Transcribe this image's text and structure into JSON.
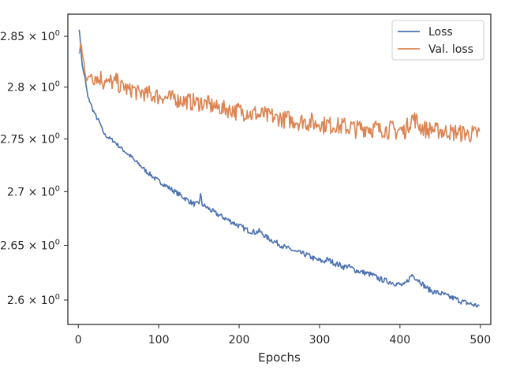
{
  "chart_data": {
    "type": "line",
    "title": "",
    "xlabel": "Epochs",
    "ylabel": "",
    "y_scale": "log",
    "xlim": [
      -13,
      513
    ],
    "ylim": [
      2.578,
      2.872
    ],
    "grid": false,
    "legend_position": "top-right",
    "x_ticks": [
      0,
      100,
      200,
      300,
      400,
      500
    ],
    "x_tick_labels": [
      "0",
      "100",
      "200",
      "300",
      "400",
      "500"
    ],
    "y_ticks": [
      {
        "value": 2.6,
        "base": "2.6",
        "sup": "0"
      },
      {
        "value": 2.65,
        "base": "2.65",
        "sup": "0"
      },
      {
        "value": 2.7,
        "base": "2.7",
        "sup": "0"
      },
      {
        "value": 2.75,
        "base": "2.75",
        "sup": "0"
      },
      {
        "value": 2.8,
        "base": "2.8",
        "sup": "0"
      },
      {
        "value": 2.85,
        "base": "2.85",
        "sup": "0"
      }
    ],
    "series": [
      {
        "name": "Loss",
        "color": "#4c72b0",
        "points": [
          [
            1,
            2.858
          ],
          [
            3,
            2.84
          ],
          [
            5,
            2.82
          ],
          [
            8,
            2.81
          ],
          [
            10,
            2.8
          ],
          [
            12,
            2.79
          ],
          [
            15,
            2.785
          ],
          [
            18,
            2.778
          ],
          [
            20,
            2.775
          ],
          [
            23,
            2.77
          ],
          [
            25,
            2.768
          ],
          [
            28,
            2.763
          ],
          [
            30,
            2.758
          ],
          [
            33,
            2.754
          ],
          [
            36,
            2.752
          ],
          [
            40,
            2.75
          ],
          [
            44,
            2.748
          ],
          [
            48,
            2.745
          ],
          [
            52,
            2.742
          ],
          [
            55,
            2.74
          ],
          [
            58,
            2.738
          ],
          [
            62,
            2.735
          ],
          [
            66,
            2.733
          ],
          [
            70,
            2.729
          ],
          [
            74,
            2.727
          ],
          [
            78,
            2.724
          ],
          [
            82,
            2.721
          ],
          [
            86,
            2.718
          ],
          [
            90,
            2.716
          ],
          [
            94,
            2.713
          ],
          [
            98,
            2.711
          ],
          [
            102,
            2.709
          ],
          [
            106,
            2.707
          ],
          [
            110,
            2.705
          ],
          [
            114,
            2.703
          ],
          [
            118,
            2.701
          ],
          [
            122,
            2.699
          ],
          [
            126,
            2.697
          ],
          [
            130,
            2.695
          ],
          [
            134,
            2.693
          ],
          [
            138,
            2.691
          ],
          [
            142,
            2.689
          ],
          [
            146,
            2.688
          ],
          [
            150,
            2.689
          ],
          [
            152,
            2.697
          ],
          [
            154,
            2.688
          ],
          [
            158,
            2.686
          ],
          [
            162,
            2.684
          ],
          [
            166,
            2.682
          ],
          [
            170,
            2.68
          ],
          [
            175,
            2.678
          ],
          [
            180,
            2.676
          ],
          [
            185,
            2.674
          ],
          [
            190,
            2.672
          ],
          [
            195,
            2.67
          ],
          [
            200,
            2.668
          ],
          [
            205,
            2.666
          ],
          [
            210,
            2.664
          ],
          [
            215,
            2.663
          ],
          [
            220,
            2.662
          ],
          [
            225,
            2.663
          ],
          [
            230,
            2.66
          ],
          [
            235,
            2.657
          ],
          [
            240,
            2.655
          ],
          [
            245,
            2.653
          ],
          [
            250,
            2.651
          ],
          [
            255,
            2.649
          ],
          [
            260,
            2.647
          ],
          [
            265,
            2.646
          ],
          [
            270,
            2.644
          ],
          [
            275,
            2.643
          ],
          [
            280,
            2.642
          ],
          [
            285,
            2.641
          ],
          [
            290,
            2.639
          ],
          [
            295,
            2.637
          ],
          [
            300,
            2.636
          ],
          [
            305,
            2.635
          ],
          [
            310,
            2.637
          ],
          [
            315,
            2.635
          ],
          [
            320,
            2.633
          ],
          [
            325,
            2.632
          ],
          [
            330,
            2.63
          ],
          [
            335,
            2.631
          ],
          [
            340,
            2.629
          ],
          [
            345,
            2.627
          ],
          [
            350,
            2.626
          ],
          [
            355,
            2.625
          ],
          [
            360,
            2.624
          ],
          [
            365,
            2.623
          ],
          [
            370,
            2.621
          ],
          [
            375,
            2.619
          ],
          [
            380,
            2.618
          ],
          [
            385,
            2.617
          ],
          [
            390,
            2.616
          ],
          [
            395,
            2.615
          ],
          [
            400,
            2.614
          ],
          [
            405,
            2.613
          ],
          [
            410,
            2.618
          ],
          [
            415,
            2.623
          ],
          [
            420,
            2.62
          ],
          [
            425,
            2.617
          ],
          [
            430,
            2.613
          ],
          [
            435,
            2.61
          ],
          [
            440,
            2.608
          ],
          [
            445,
            2.607
          ],
          [
            450,
            2.606
          ],
          [
            455,
            2.605
          ],
          [
            460,
            2.603
          ],
          [
            465,
            2.602
          ],
          [
            470,
            2.601
          ],
          [
            475,
            2.599
          ],
          [
            480,
            2.598
          ],
          [
            485,
            2.597
          ],
          [
            490,
            2.596
          ],
          [
            495,
            2.595
          ],
          [
            499,
            2.595
          ]
        ]
      },
      {
        "name": "Val. loss",
        "color": "#dd8452",
        "points": [
          [
            1,
            2.826
          ],
          [
            3,
            2.846
          ],
          [
            5,
            2.83
          ],
          [
            8,
            2.82
          ],
          [
            10,
            2.812
          ],
          [
            13,
            2.805
          ],
          [
            16,
            2.815
          ],
          [
            19,
            2.808
          ],
          [
            22,
            2.812
          ],
          [
            25,
            2.806
          ],
          [
            28,
            2.81
          ],
          [
            31,
            2.804
          ],
          [
            34,
            2.809
          ],
          [
            37,
            2.802
          ],
          [
            40,
            2.806
          ],
          [
            44,
            2.803
          ],
          [
            48,
            2.807
          ],
          [
            52,
            2.799
          ],
          [
            56,
            2.802
          ],
          [
            60,
            2.798
          ],
          [
            64,
            2.796
          ],
          [
            68,
            2.799
          ],
          [
            72,
            2.795
          ],
          [
            76,
            2.793
          ],
          [
            80,
            2.796
          ],
          [
            84,
            2.792
          ],
          [
            88,
            2.794
          ],
          [
            92,
            2.791
          ],
          [
            96,
            2.793
          ],
          [
            100,
            2.79
          ],
          [
            104,
            2.792
          ],
          [
            108,
            2.789
          ],
          [
            112,
            2.79
          ],
          [
            116,
            2.788
          ],
          [
            120,
            2.791
          ],
          [
            124,
            2.787
          ],
          [
            128,
            2.788
          ],
          [
            132,
            2.786
          ],
          [
            136,
            2.787
          ],
          [
            140,
            2.785
          ],
          [
            144,
            2.786
          ],
          [
            148,
            2.784
          ],
          [
            152,
            2.786
          ],
          [
            156,
            2.783
          ],
          [
            160,
            2.785
          ],
          [
            164,
            2.781
          ],
          [
            168,
            2.783
          ],
          [
            172,
            2.779
          ],
          [
            176,
            2.781
          ],
          [
            180,
            2.778
          ],
          [
            184,
            2.78
          ],
          [
            188,
            2.777
          ],
          [
            192,
            2.779
          ],
          [
            196,
            2.776
          ],
          [
            200,
            2.778
          ],
          [
            205,
            2.775
          ],
          [
            210,
            2.777
          ],
          [
            215,
            2.773
          ],
          [
            220,
            2.775
          ],
          [
            225,
            2.772
          ],
          [
            230,
            2.774
          ],
          [
            235,
            2.771
          ],
          [
            240,
            2.773
          ],
          [
            245,
            2.769
          ],
          [
            250,
            2.771
          ],
          [
            255,
            2.768
          ],
          [
            260,
            2.77
          ],
          [
            265,
            2.767
          ],
          [
            270,
            2.768
          ],
          [
            275,
            2.766
          ],
          [
            280,
            2.768
          ],
          [
            285,
            2.765
          ],
          [
            290,
            2.767
          ],
          [
            295,
            2.764
          ],
          [
            300,
            2.766
          ],
          [
            305,
            2.763
          ],
          [
            310,
            2.765
          ],
          [
            315,
            2.762
          ],
          [
            320,
            2.764
          ],
          [
            325,
            2.761
          ],
          [
            330,
            2.763
          ],
          [
            335,
            2.76
          ],
          [
            340,
            2.762
          ],
          [
            345,
            2.759
          ],
          [
            350,
            2.761
          ],
          [
            355,
            2.76
          ],
          [
            360,
            2.762
          ],
          [
            365,
            2.759
          ],
          [
            370,
            2.761
          ],
          [
            375,
            2.758
          ],
          [
            380,
            2.76
          ],
          [
            385,
            2.758
          ],
          [
            390,
            2.76
          ],
          [
            395,
            2.757
          ],
          [
            400,
            2.759
          ],
          [
            405,
            2.757
          ],
          [
            410,
            2.763
          ],
          [
            415,
            2.77
          ],
          [
            420,
            2.768
          ],
          [
            425,
            2.762
          ],
          [
            430,
            2.76
          ],
          [
            435,
            2.758
          ],
          [
            440,
            2.76
          ],
          [
            445,
            2.757
          ],
          [
            450,
            2.759
          ],
          [
            455,
            2.756
          ],
          [
            460,
            2.758
          ],
          [
            465,
            2.755
          ],
          [
            470,
            2.757
          ],
          [
            475,
            2.755
          ],
          [
            480,
            2.756
          ],
          [
            485,
            2.754
          ],
          [
            490,
            2.755
          ],
          [
            495,
            2.754
          ],
          [
            499,
            2.757
          ]
        ]
      }
    ]
  }
}
